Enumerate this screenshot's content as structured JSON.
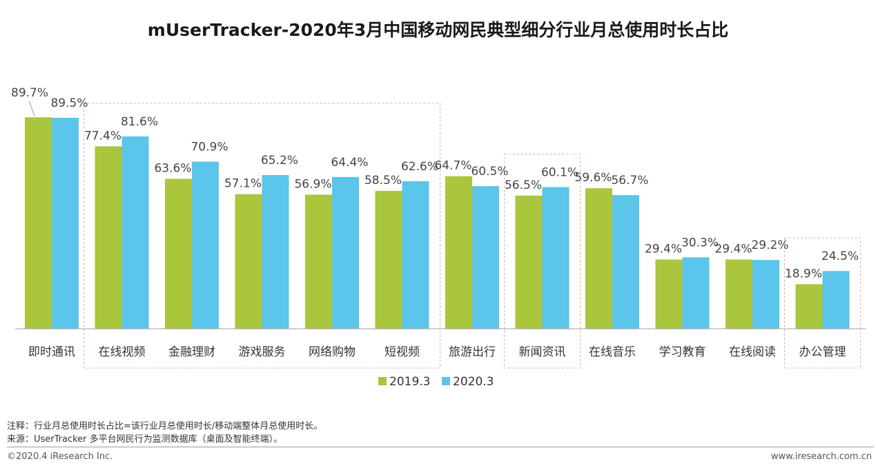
{
  "chart_data": {
    "type": "bar",
    "title": "mUserTracker-2020年3月中国移动网民典型细分行业月总使用时长占比",
    "categories": [
      "即时通讯",
      "在线视频",
      "金融理财",
      "游戏服务",
      "网络购物",
      "短视频",
      "旅游出行",
      "新闻资讯",
      "在线音乐",
      "学习教育",
      "在线阅读",
      "办公管理"
    ],
    "series": [
      {
        "name": "2019.3",
        "color": "#a9c63d",
        "values": [
          89.7,
          77.4,
          63.6,
          57.1,
          56.9,
          58.5,
          64.7,
          56.5,
          59.6,
          29.4,
          29.4,
          18.9
        ],
        "labels": [
          "89.7%",
          "77.4%",
          "63.6%",
          "57.1%",
          "56.9%",
          "58.5%",
          "64.7%",
          "56.5%",
          "59.6%",
          "29.4%",
          "29.4%",
          "18.9%"
        ]
      },
      {
        "name": "2020.3",
        "color": "#5bc5eb",
        "values": [
          89.5,
          81.6,
          70.9,
          65.2,
          64.4,
          62.6,
          60.5,
          60.1,
          56.7,
          30.3,
          29.2,
          24.5
        ],
        "labels": [
          "89.5%",
          "81.6%",
          "70.9%",
          "65.2%",
          "64.4%",
          "62.6%",
          "60.5%",
          "60.1%",
          "56.7%",
          "30.3%",
          "29.2%",
          "24.5%"
        ]
      }
    ],
    "ylim": [
      0,
      100
    ],
    "xlabel": "",
    "ylabel": "",
    "grid": false,
    "legend_position": "bottom-center",
    "highlight_color": "#e8a0b0",
    "highlight_groups": [
      [
        1,
        5
      ],
      [
        7,
        7
      ],
      [
        11,
        11
      ]
    ]
  },
  "notes": {
    "note": "注释：行业月总使用时长占比=该行业月总使用时长/移动端整体月总使用时长。",
    "source": "来源：UserTracker 多平台网民行为监测数据库（桌面及智能终端）。"
  },
  "footer": {
    "copyright": "©2020.4 iResearch Inc.",
    "website": "www.iresearch.com.cn"
  }
}
